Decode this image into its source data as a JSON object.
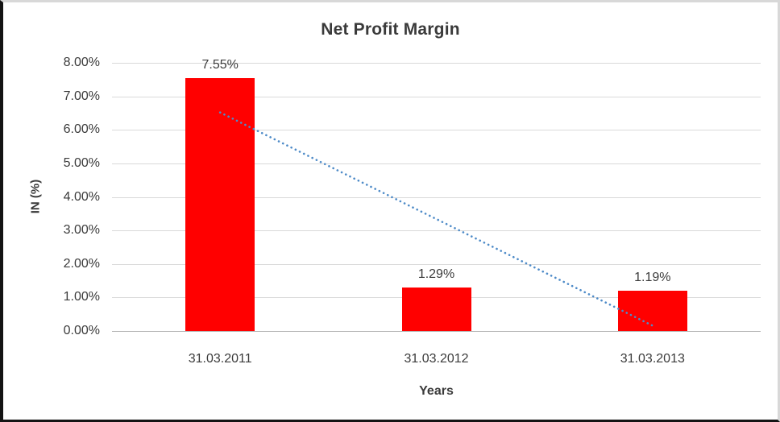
{
  "chart_data": {
    "type": "bar",
    "title": "Net Profit Margin",
    "categories": [
      "31.03.2011",
      "31.03.2012",
      "31.03.2013"
    ],
    "values": [
      7.55,
      1.29,
      1.19
    ],
    "data_labels": [
      "7.55%",
      "1.29%",
      "1.19%"
    ],
    "xlabel": "Years",
    "ylabel": "IN (%)",
    "ylim": [
      0,
      8
    ],
    "ytick_labels_top_to_bottom": [
      "8.00%",
      "7.00%",
      "6.00%",
      "5.00%",
      "4.00%",
      "3.00%",
      "2.00%",
      "1.00%",
      "0.00%"
    ],
    "grid": true,
    "legend": "none",
    "bar_color": "#ff0000",
    "gridline_color": "#d9d9d9",
    "axis_line_color": "#b3b3b3",
    "text_color": "#3b3b3b",
    "trendline": {
      "type": "linear",
      "style": "dotted",
      "color": "#4e8bc8",
      "stroke_width": 2.6,
      "dot_gap": 5.7,
      "start_category_index": 0,
      "start_value": 6.52,
      "end_category_index": 2,
      "end_value": 0.16
    }
  }
}
